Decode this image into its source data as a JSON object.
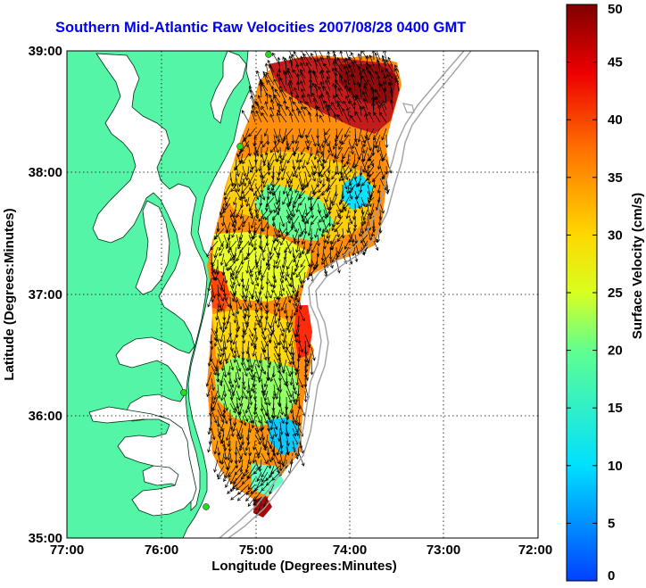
{
  "title": "Southern Mid-Atlantic Raw Velocities 2007/08/28 0400 GMT",
  "map": {
    "xlabel": "Longitude (Degrees:Minutes)",
    "ylabel": "Latitude (Degrees:Minutes)",
    "x_ticks": [
      "77:00",
      "76:00",
      "75:00",
      "74:00",
      "73:00",
      "72:00"
    ],
    "y_ticks": [
      "39:00",
      "38:00",
      "37:00",
      "36:00",
      "35:00"
    ],
    "lon_range": [
      -77,
      -72
    ],
    "lat_range": [
      35,
      39
    ],
    "colors": {
      "land": "#55f5a8",
      "water": "#ffffff",
      "grid": "#000000",
      "isobath": "#a0a0a0",
      "station": "#22dd22",
      "title": "#0000ee"
    }
  },
  "colorbar": {
    "label": "Surface Velocity (cm/s)",
    "ticks": [
      "0",
      "5",
      "10",
      "15",
      "20",
      "25",
      "30",
      "35",
      "40",
      "45",
      "50"
    ],
    "range": [
      0,
      50
    ],
    "colormap": "jet"
  }
}
